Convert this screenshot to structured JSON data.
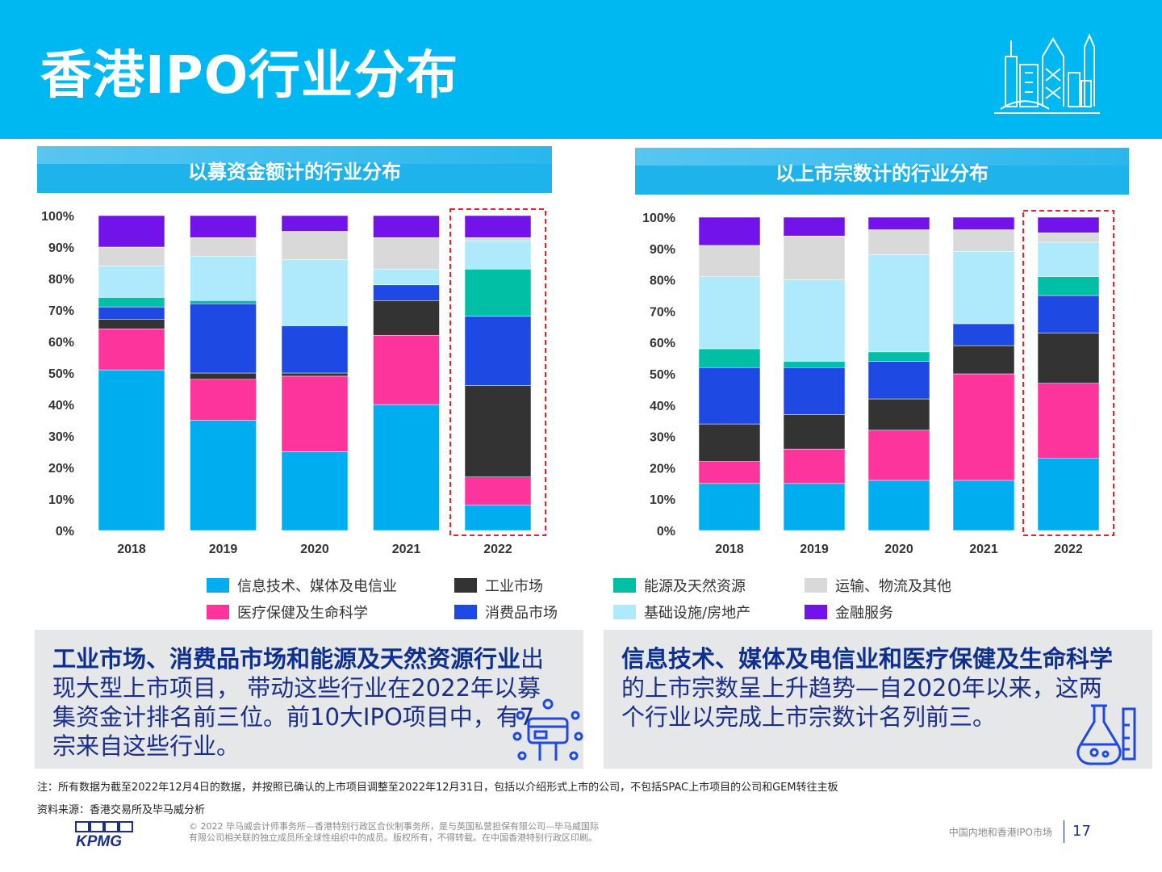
{
  "page": {
    "title": "香港IPO行业分布",
    "left_panel_title": "以募资金额计的行业分布",
    "right_panel_title": "以上市宗数计的行业分布",
    "left_box": {
      "bold": "工业市场、消费品市场和能源及天然资源行业",
      "rest": "出现大型上市项目， 带动这些行业在2022年以募集资金计排名前三位。前10大IPO项目中，有7宗来自这些行业。"
    },
    "right_box": {
      "bold": "信息技术、媒体及电信业和医疗保健及生命科学",
      "rest": "的上市宗数呈上升趋势—自2020年以来，这两个行业以完成上市宗数计名列前三。"
    },
    "note": "注：所有数据为截至2022年12月4日的数据，并按照已确认的上市项目调整至2022年12月31日，包括以介绍形式上市的公司，不包括SPAC上市项目的公司和GEM转往主板",
    "source": "资料来源：香港交易所及毕马威分析",
    "copyright_line1": "© 2022 毕马威会计师事务所—香港特别行政区合伙制事务所，是与英国私营担保有限公司—毕马威国际",
    "copyright_line2": "有限公司相关联的独立成员所全球性组织中的成员。版权所有，不得转载。在中国香港特别行政区印刷。",
    "footer_title": "中国内地和香港IPO市场",
    "page_number": "17",
    "logo_text": "KPMG"
  },
  "legend": [
    {
      "name": "信息技术、媒体及电信业",
      "color": "#00adef"
    },
    {
      "name": "工业市场",
      "color": "#333333"
    },
    {
      "name": "能源及天然资源",
      "color": "#00bfa5"
    },
    {
      "name": "运输、物流及其他",
      "color": "#d9d9d9"
    },
    {
      "name": "医疗保健及生命科学",
      "color": "#fd349c"
    },
    {
      "name": "消费品市场",
      "color": "#1e49e2"
    },
    {
      "name": "基础设施/房地产",
      "color": "#aee9fc"
    },
    {
      "name": "金融服务",
      "color": "#7213ea"
    }
  ],
  "chart_data": [
    {
      "type": "bar",
      "stacked": true,
      "title": "以募资金额计的行业分布",
      "categories": [
        "2018",
        "2019",
        "2020",
        "2021",
        "2022"
      ],
      "ylim": [
        0,
        100
      ],
      "yticks": [
        "0%",
        "10%",
        "20%",
        "30%",
        "40%",
        "50%",
        "60%",
        "70%",
        "80%",
        "90%",
        "100%"
      ],
      "highlight": "2022",
      "series": [
        {
          "name": "信息技术、媒体及电信业",
          "color": "#00adef",
          "values": [
            51,
            35,
            25,
            40,
            8
          ]
        },
        {
          "name": "医疗保健及生命科学",
          "color": "#fd349c",
          "values": [
            13,
            13,
            24,
            22,
            9
          ]
        },
        {
          "name": "工业市场",
          "color": "#333333",
          "values": [
            3,
            2,
            1,
            11,
            29
          ]
        },
        {
          "name": "消费品市场",
          "color": "#1e49e2",
          "values": [
            4,
            22,
            15,
            5,
            22
          ]
        },
        {
          "name": "能源及天然资源",
          "color": "#00bfa5",
          "values": [
            3,
            1,
            0,
            0,
            15
          ]
        },
        {
          "name": "基础设施/房地产",
          "color": "#aee9fc",
          "values": [
            10,
            14,
            21,
            5,
            9
          ]
        },
        {
          "name": "运输、物流及其他",
          "color": "#d9d9d9",
          "values": [
            6,
            6,
            9,
            10,
            1
          ]
        },
        {
          "name": "金融服务",
          "color": "#7213ea",
          "values": [
            10,
            7,
            5,
            7,
            7
          ]
        }
      ]
    },
    {
      "type": "bar",
      "stacked": true,
      "title": "以上市宗数计的行业分布",
      "categories": [
        "2018",
        "2019",
        "2020",
        "2021",
        "2022"
      ],
      "ylim": [
        0,
        100
      ],
      "yticks": [
        "0%",
        "10%",
        "20%",
        "30%",
        "40%",
        "50%",
        "60%",
        "70%",
        "80%",
        "90%",
        "100%"
      ],
      "highlight": "2022",
      "series": [
        {
          "name": "信息技术、媒体及电信业",
          "color": "#00adef",
          "values": [
            15,
            15,
            16,
            16,
            23
          ]
        },
        {
          "name": "医疗保健及生命科学",
          "color": "#fd349c",
          "values": [
            7,
            11,
            16,
            34,
            24
          ]
        },
        {
          "name": "工业市场",
          "color": "#333333",
          "values": [
            12,
            11,
            10,
            9,
            16
          ]
        },
        {
          "name": "消费品市场",
          "color": "#1e49e2",
          "values": [
            18,
            15,
            12,
            7,
            12
          ]
        },
        {
          "name": "能源及天然资源",
          "color": "#00bfa5",
          "values": [
            6,
            2,
            3,
            0,
            6
          ]
        },
        {
          "name": "基础设施/房地产",
          "color": "#aee9fc",
          "values": [
            23,
            26,
            31,
            23,
            11
          ]
        },
        {
          "name": "运输、物流及其他",
          "color": "#d9d9d9",
          "values": [
            10,
            14,
            8,
            7,
            3
          ]
        },
        {
          "name": "金融服务",
          "color": "#7213ea",
          "values": [
            9,
            6,
            4,
            4,
            5
          ]
        }
      ]
    }
  ]
}
